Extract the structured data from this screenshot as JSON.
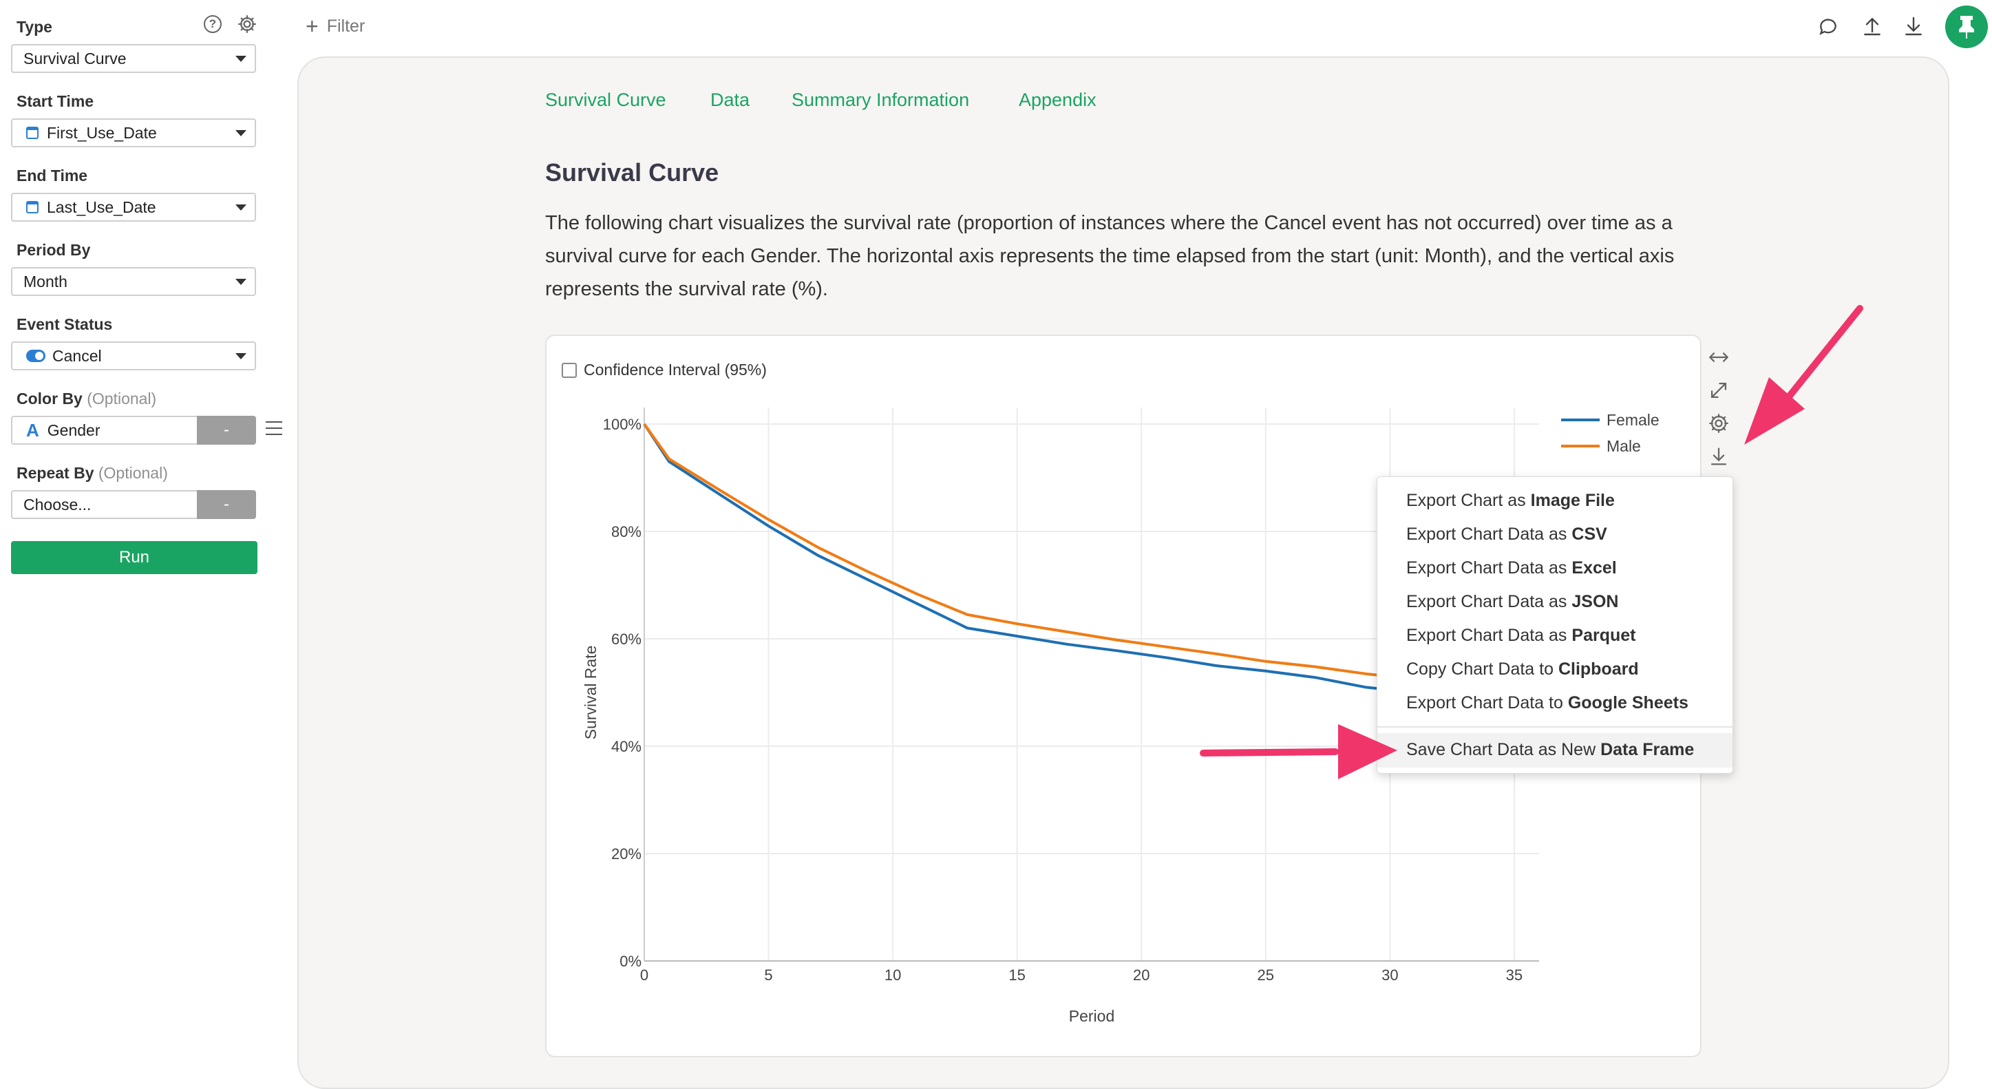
{
  "sidebar": {
    "type_label": "Type",
    "type_value": "Survival Curve",
    "start_time_label": "Start Time",
    "start_time_value": "First_Use_Date",
    "end_time_label": "End Time",
    "end_time_value": "Last_Use_Date",
    "period_by_label": "Period By",
    "period_by_value": "Month",
    "event_status_label": "Event Status",
    "event_status_value": "Cancel",
    "color_by_label": "Color By",
    "color_by_optional": "(Optional)",
    "color_by_value": "Gender",
    "color_by_minus": "-",
    "repeat_by_label": "Repeat By",
    "repeat_by_optional": "(Optional)",
    "repeat_by_value": "Choose...",
    "repeat_by_minus": "-",
    "run_label": "Run",
    "help_glyph": "?"
  },
  "topbar": {
    "filter_label": "Filter",
    "plus_glyph": "+"
  },
  "tabs": [
    "Survival Curve",
    "Data",
    "Summary Information",
    "Appendix"
  ],
  "section": {
    "title": "Survival Curve",
    "description": "The following chart visualizes the survival rate (proportion of instances where the Cancel event has not occurred) over time as a survival curve for each Gender. The horizontal axis represents the time elapsed from the start (unit: Month), and the vertical axis represents the survival rate (%)."
  },
  "chart_controls": {
    "confidence_interval_label": "Confidence Interval (95%)"
  },
  "chart_data": {
    "type": "line",
    "xlabel": "Period",
    "ylabel": "Survival Rate",
    "xlim": [
      0,
      36
    ],
    "ylim": [
      0,
      100
    ],
    "x_ticks": [
      0,
      5,
      10,
      15,
      20,
      25,
      30,
      35
    ],
    "y_ticks": [
      "0%",
      "20%",
      "40%",
      "60%",
      "80%",
      "100%"
    ],
    "grid": true,
    "legend_position": "top-right",
    "series": [
      {
        "name": "Female",
        "color": "#1f6fb2",
        "x": [
          0,
          1,
          3,
          5,
          7,
          9,
          11,
          13,
          15,
          17,
          19,
          21,
          23,
          25,
          27,
          29,
          30
        ],
        "y": [
          100,
          93,
          87,
          81,
          75.5,
          71,
          66.5,
          62,
          60.5,
          59,
          57.8,
          56.5,
          55,
          54,
          52.8,
          51,
          50.5
        ]
      },
      {
        "name": "Male",
        "color": "#f07c14",
        "x": [
          0,
          1,
          3,
          5,
          7,
          9,
          11,
          13,
          15,
          17,
          19,
          21,
          23,
          25,
          27,
          29,
          30
        ],
        "y": [
          100,
          93.5,
          87.8,
          82.2,
          77,
          72.5,
          68.3,
          64.5,
          62.8,
          61.3,
          59.8,
          58.5,
          57.2,
          55.8,
          54.8,
          53.5,
          53
        ]
      }
    ]
  },
  "export_menu": {
    "items": [
      {
        "prefix": "Export Chart as ",
        "bold": "Image File"
      },
      {
        "prefix": "Export Chart Data as ",
        "bold": "CSV"
      },
      {
        "prefix": "Export Chart Data as ",
        "bold": "Excel"
      },
      {
        "prefix": "Export Chart Data as ",
        "bold": "JSON"
      },
      {
        "prefix": "Export Chart Data as ",
        "bold": "Parquet"
      },
      {
        "prefix": "Copy Chart Data to ",
        "bold": "Clipboard"
      },
      {
        "prefix": "Export Chart Data to ",
        "bold": "Google Sheets"
      },
      {
        "prefix": "Save Chart Data as New ",
        "bold": "Data Frame"
      }
    ]
  },
  "colors": {
    "accent": "#1aa463",
    "annotation": "#f0356b",
    "link": "#2a7fd4"
  },
  "icons": [
    "help-icon",
    "gear-icon",
    "calendar-icon",
    "toggle-icon",
    "text-type-icon",
    "hamburger-icon",
    "chat-icon",
    "upload-icon",
    "download-icon",
    "pin-icon",
    "expand-width-icon",
    "fullscreen-icon",
    "chart-settings-icon",
    "chart-download-icon"
  ]
}
